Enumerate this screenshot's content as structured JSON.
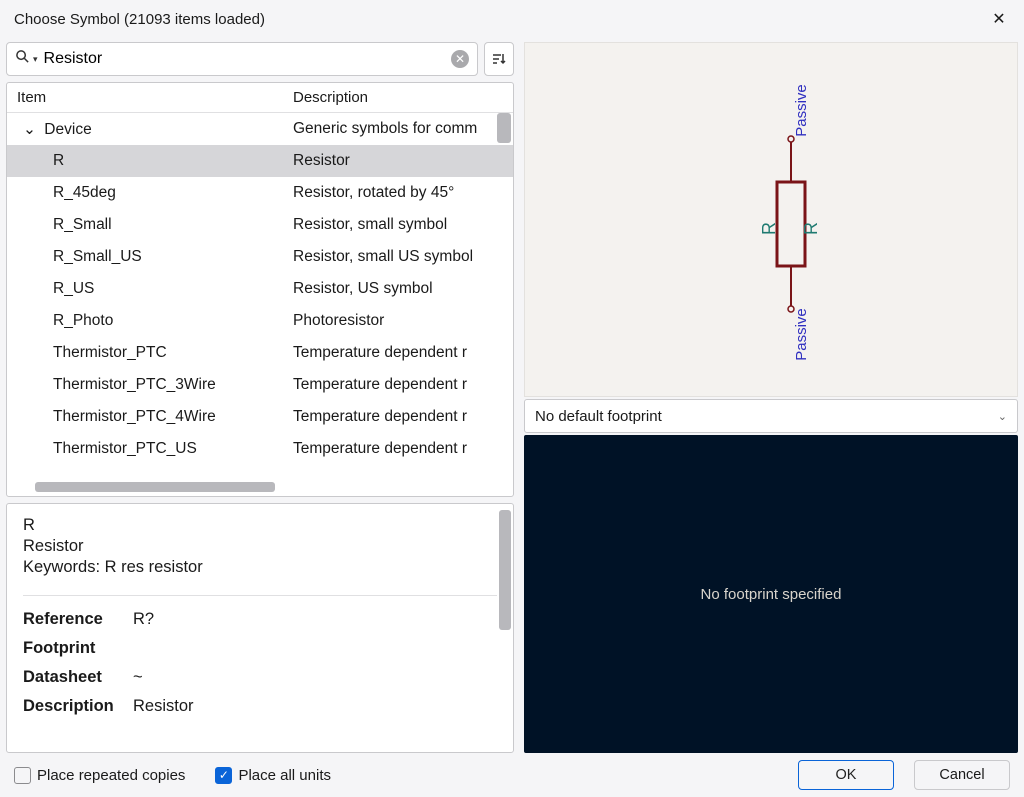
{
  "window": {
    "title": "Choose Symbol (21093 items loaded)"
  },
  "search": {
    "value": "Resistor",
    "placeholder": ""
  },
  "tree": {
    "columns": {
      "item": "Item",
      "desc": "Description"
    },
    "category": {
      "expanded": true,
      "name": "Device",
      "desc": "Generic symbols for comm"
    },
    "rows": [
      {
        "item": "R",
        "desc": "Resistor",
        "selected": true
      },
      {
        "item": "R_45deg",
        "desc": "Resistor, rotated by 45°"
      },
      {
        "item": "R_Small",
        "desc": "Resistor, small symbol"
      },
      {
        "item": "R_Small_US",
        "desc": "Resistor, small US symbol"
      },
      {
        "item": "R_US",
        "desc": "Resistor, US symbol"
      },
      {
        "item": "R_Photo",
        "desc": "Photoresistor"
      },
      {
        "item": "Thermistor_PTC",
        "desc": "Temperature dependent r"
      },
      {
        "item": "Thermistor_PTC_3Wire",
        "desc": "Temperature dependent r"
      },
      {
        "item": "Thermistor_PTC_4Wire",
        "desc": "Temperature dependent r"
      },
      {
        "item": "Thermistor_PTC_US",
        "desc": "Temperature dependent r"
      }
    ]
  },
  "detail": {
    "name": "R",
    "desc": "Resistor",
    "keywords": "Keywords: R res resistor",
    "fields": [
      {
        "label": "Reference",
        "value": "R?"
      },
      {
        "label": "Footprint",
        "value": ""
      },
      {
        "label": "Datasheet",
        "value": "~"
      },
      {
        "label": "Description",
        "value": "Resistor"
      }
    ]
  },
  "preview": {
    "pin_top": "Passive",
    "pin_bottom": "Passive",
    "ref": "R",
    "value": "R",
    "body_color": "#7a1417",
    "pin_color": "#3030c0",
    "text_color": "#1e7a70",
    "bg": "#f4f2ef"
  },
  "footprint": {
    "select_text": "No default footprint",
    "preview_text": "No footprint specified",
    "preview_bg": "#001226",
    "preview_fg": "#d8d4cc"
  },
  "footer": {
    "repeated": {
      "label": "Place repeated copies",
      "checked": false
    },
    "allunits": {
      "label": "Place all units",
      "checked": true
    },
    "ok": "OK",
    "cancel": "Cancel"
  }
}
